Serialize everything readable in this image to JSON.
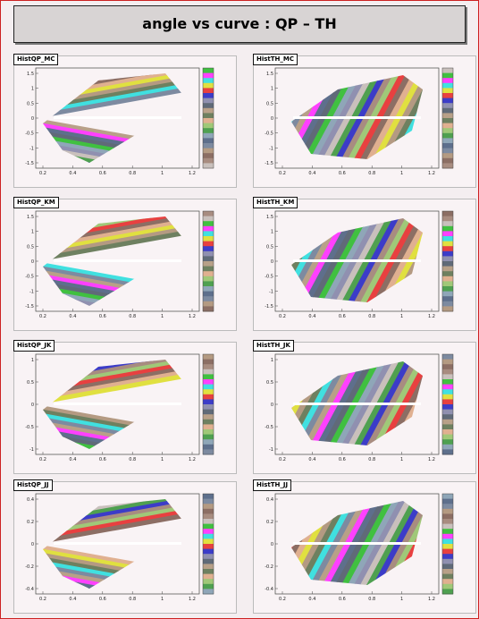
{
  "canvas": {
    "title": "angle vs curve : QP – TH"
  },
  "chart_data": [
    {
      "type": "heatmap",
      "hist": "HistQP_MC",
      "shape": "qp",
      "yticks": [
        "1.5",
        "1",
        "0.5",
        "0",
        "-0.5",
        "-1",
        "-1.5"
      ],
      "xticks": [
        "0.2",
        "0.4",
        "0.6",
        "0.8",
        "1",
        "1.2"
      ],
      "zticks": [
        "",
        "",
        "",
        ""
      ]
    },
    {
      "type": "heatmap",
      "hist": "HistTH_MC",
      "shape": "th",
      "yticks": [
        "1.5",
        "1",
        "0.5",
        "0",
        "-0.5",
        "-1",
        "-1.5"
      ],
      "xticks": [
        "0.2",
        "0.4",
        "0.6",
        "0.8",
        "1",
        "1.2"
      ],
      "zticks": [
        "",
        "",
        "",
        ""
      ]
    },
    {
      "type": "heatmap",
      "hist": "HistQP_KM",
      "shape": "qp",
      "yticks": [
        "1.5",
        "1",
        "0.5",
        "0",
        "-0.5",
        "-1",
        "-1.5"
      ],
      "xticks": [
        "0.2",
        "0.4",
        "0.6",
        "0.8",
        "1",
        "1.2"
      ],
      "zticks": [
        "",
        "",
        "",
        ""
      ]
    },
    {
      "type": "heatmap",
      "hist": "HistTH_KM",
      "shape": "th",
      "yticks": [
        "1.5",
        "1",
        "0.5",
        "0",
        "-0.5",
        "-1",
        "-1.5"
      ],
      "xticks": [
        "0.2",
        "0.4",
        "0.6",
        "0.8",
        "1",
        "1.2"
      ],
      "zticks": [
        "",
        "",
        "",
        ""
      ]
    },
    {
      "type": "heatmap",
      "hist": "HistQP_JK",
      "shape": "qp",
      "yticks": [
        "1",
        "0.5",
        "0",
        "-0.5",
        "-1"
      ],
      "xticks": [
        "0.2",
        "0.4",
        "0.6",
        "0.8",
        "1",
        "1.2"
      ],
      "zticks": [
        "",
        "",
        "",
        ""
      ]
    },
    {
      "type": "heatmap",
      "hist": "HistTH_JK",
      "shape": "th",
      "yticks": [
        "1",
        "0.5",
        "0",
        "-0.5",
        "-1"
      ],
      "xticks": [
        "0.2",
        "0.4",
        "0.6",
        "0.8",
        "1",
        "1.2"
      ],
      "zticks": [
        "",
        "",
        "",
        ""
      ]
    },
    {
      "type": "heatmap",
      "hist": "HistQP_JJ",
      "shape": "qp",
      "yticks": [
        "0.4",
        "0.2",
        "0",
        "-0.2",
        "-0.4"
      ],
      "xticks": [
        "0.2",
        "0.4",
        "0.6",
        "0.8",
        "1",
        "1.2"
      ],
      "zticks": [
        "",
        "",
        "",
        ""
      ]
    },
    {
      "type": "heatmap",
      "hist": "HistTH_JJ",
      "shape": "th",
      "yticks": [
        "0.4",
        "0.2",
        "0",
        "-0.2",
        "-0.4"
      ],
      "xticks": [
        "0.2",
        "0.4",
        "0.6",
        "0.8",
        "1",
        "1.2"
      ],
      "zticks": [
        "",
        "",
        "",
        ""
      ]
    }
  ],
  "palette": [
    "#c9c0bc",
    "#a88c80",
    "#8c6e64",
    "#b49a82",
    "#7d8aa0",
    "#5e6f8c",
    "#8fa6b8",
    "#4fa050",
    "#a0c878",
    "#e0b090",
    "#6e8060",
    "#b8a088",
    "#606a78",
    "#9090b0",
    "#3c3cc8",
    "#e84040",
    "#e0e040",
    "#40e0e0",
    "#ff40ff",
    "#40c040"
  ]
}
